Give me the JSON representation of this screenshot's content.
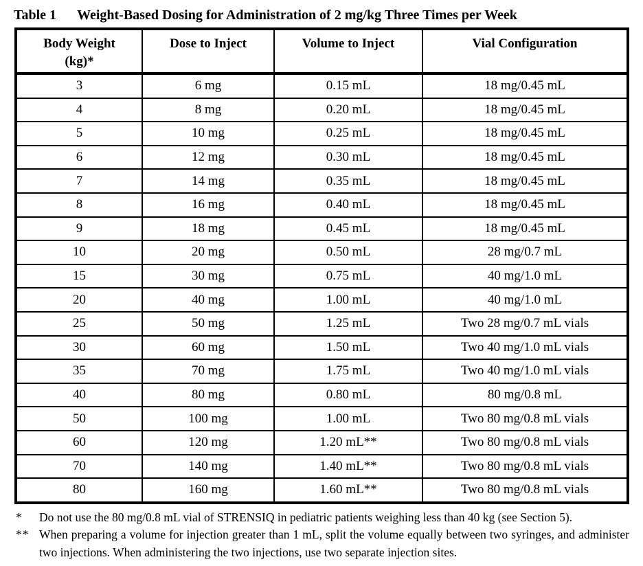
{
  "title": {
    "label": "Table 1",
    "text": "Weight-Based Dosing for Administration of 2 mg/kg Three Times per Week"
  },
  "table": {
    "headers": [
      "Body Weight\n(kg)*",
      "Dose to Inject",
      "Volume to Inject",
      "Vial Configuration"
    ],
    "rows": [
      [
        "3",
        "6 mg",
        "0.15 mL",
        "18 mg/0.45 mL"
      ],
      [
        "4",
        "8 mg",
        "0.20 mL",
        "18 mg/0.45 mL"
      ],
      [
        "5",
        "10 mg",
        "0.25 mL",
        "18 mg/0.45 mL"
      ],
      [
        "6",
        "12 mg",
        "0.30 mL",
        "18 mg/0.45 mL"
      ],
      [
        "7",
        "14 mg",
        "0.35 mL",
        "18 mg/0.45 mL"
      ],
      [
        "8",
        "16 mg",
        "0.40 mL",
        "18 mg/0.45 mL"
      ],
      [
        "9",
        "18 mg",
        "0.45 mL",
        "18 mg/0.45 mL"
      ],
      [
        "10",
        "20 mg",
        "0.50 mL",
        "28 mg/0.7 mL"
      ],
      [
        "15",
        "30 mg",
        "0.75 mL",
        "40 mg/1.0 mL"
      ],
      [
        "20",
        "40 mg",
        "1.00 mL",
        "40 mg/1.0 mL"
      ],
      [
        "25",
        "50 mg",
        "1.25 mL",
        "Two 28 mg/0.7 mL vials"
      ],
      [
        "30",
        "60 mg",
        "1.50 mL",
        "Two 40 mg/1.0 mL vials"
      ],
      [
        "35",
        "70 mg",
        "1.75 mL",
        "Two 40 mg/1.0 mL vials"
      ],
      [
        "40",
        "80 mg",
        "0.80 mL",
        "80 mg/0.8 mL"
      ],
      [
        "50",
        "100 mg",
        "1.00 mL",
        "Two 80 mg/0.8 mL vials"
      ],
      [
        "60",
        "120 mg",
        "1.20 mL**",
        "Two 80 mg/0.8 mL vials"
      ],
      [
        "70",
        "140 mg",
        "1.40 mL**",
        "Two 80 mg/0.8 mL vials"
      ],
      [
        "80",
        "160 mg",
        "1.60 mL**",
        "Two 80 mg/0.8 mL vials"
      ]
    ]
  },
  "footnotes": [
    {
      "marker": "*",
      "text": "Do not use the 80 mg/0.8 mL vial of STRENSIQ in pediatric patients weighing less than 40 kg (see Section 5)."
    },
    {
      "marker": "**",
      "text": "When preparing a volume for injection greater than 1 mL, split the volume equally between two syringes, and administer two injections. When administering the two injections, use two separate injection sites."
    }
  ]
}
